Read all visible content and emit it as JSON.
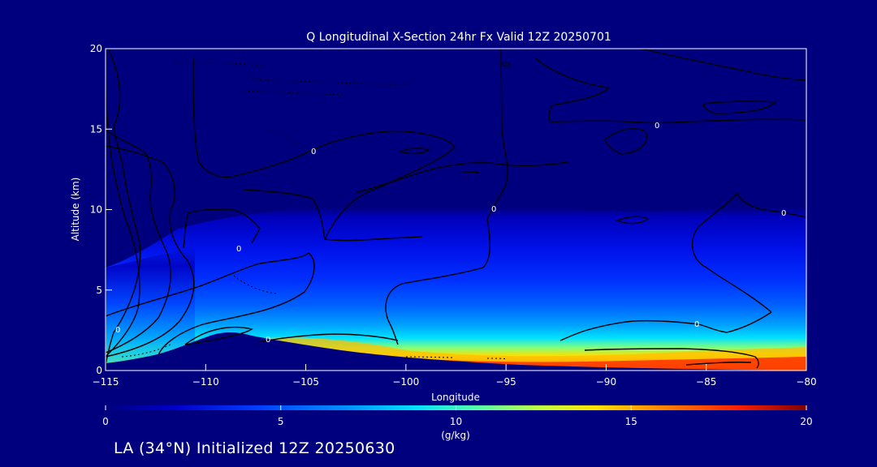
{
  "chart_data": {
    "type": "heatmap",
    "title": "Q Longitudinal X-Section 24hr  Fx Valid 12Z 20250701",
    "xlabel": "Longitude",
    "ylabel": "Altitude (km)",
    "xlim": [
      -115,
      -80
    ],
    "ylim": [
      0,
      20
    ],
    "xticks": [
      -115,
      -110,
      -105,
      -100,
      -95,
      -90,
      -85,
      -80
    ],
    "xtick_labels": [
      "−115",
      "−110",
      "−105",
      "−100",
      "−95",
      "−90",
      "−85",
      "−80"
    ],
    "yticks": [
      0,
      5,
      10,
      15,
      20
    ],
    "ytick_labels": [
      "0",
      "5",
      "10",
      "15",
      "20"
    ],
    "colorbar": {
      "label": "(g/kg)",
      "min": 0,
      "max": 20,
      "ticks": [
        0,
        5,
        10,
        15,
        20
      ],
      "tick_labels": [
        "0",
        "5",
        "10",
        "15",
        "20"
      ]
    },
    "moisture_profile_by_longitude": {
      "longitude": [
        -115,
        -112,
        -110,
        -108,
        -106,
        -104,
        -102,
        -100,
        -97,
        -94,
        -91,
        -88,
        -85,
        -82,
        -80
      ],
      "surface_q": [
        8,
        10,
        12,
        12,
        14,
        15,
        15.5,
        16,
        16.5,
        17,
        17,
        17.5,
        18,
        18,
        18
      ],
      "moist_top_km": [
        6.5,
        7,
        8,
        9,
        9.6,
        9.8,
        9.6,
        9.4,
        9.2,
        9.4,
        9.8,
        9.6,
        9.4,
        9.8,
        10
      ]
    },
    "terrain_km": {
      "longitude": [
        -115,
        -113,
        -111,
        -110,
        -109,
        -108,
        -107,
        -105,
        -102,
        -100,
        -97,
        -94,
        -90,
        -85,
        -80
      ],
      "height": [
        0.4,
        0.6,
        1.2,
        1.8,
        2.1,
        2.2,
        1.9,
        1.4,
        1.0,
        0.8,
        0.5,
        0.35,
        0.25,
        0.15,
        0.1
      ]
    },
    "contour_labels": [
      "0",
      "0",
      "0",
      "0",
      "0",
      "0",
      "0",
      "0"
    ]
  },
  "footer": {
    "text": "LA (34°N) Initialized 12Z 20250630"
  },
  "colors": {
    "background": "#00007f",
    "contour": "#000000",
    "colormap": [
      "#00008f",
      "#0000ff",
      "#0080ff",
      "#00ffff",
      "#80ff80",
      "#ffff00",
      "#ff8000",
      "#ff0000",
      "#800000"
    ]
  }
}
